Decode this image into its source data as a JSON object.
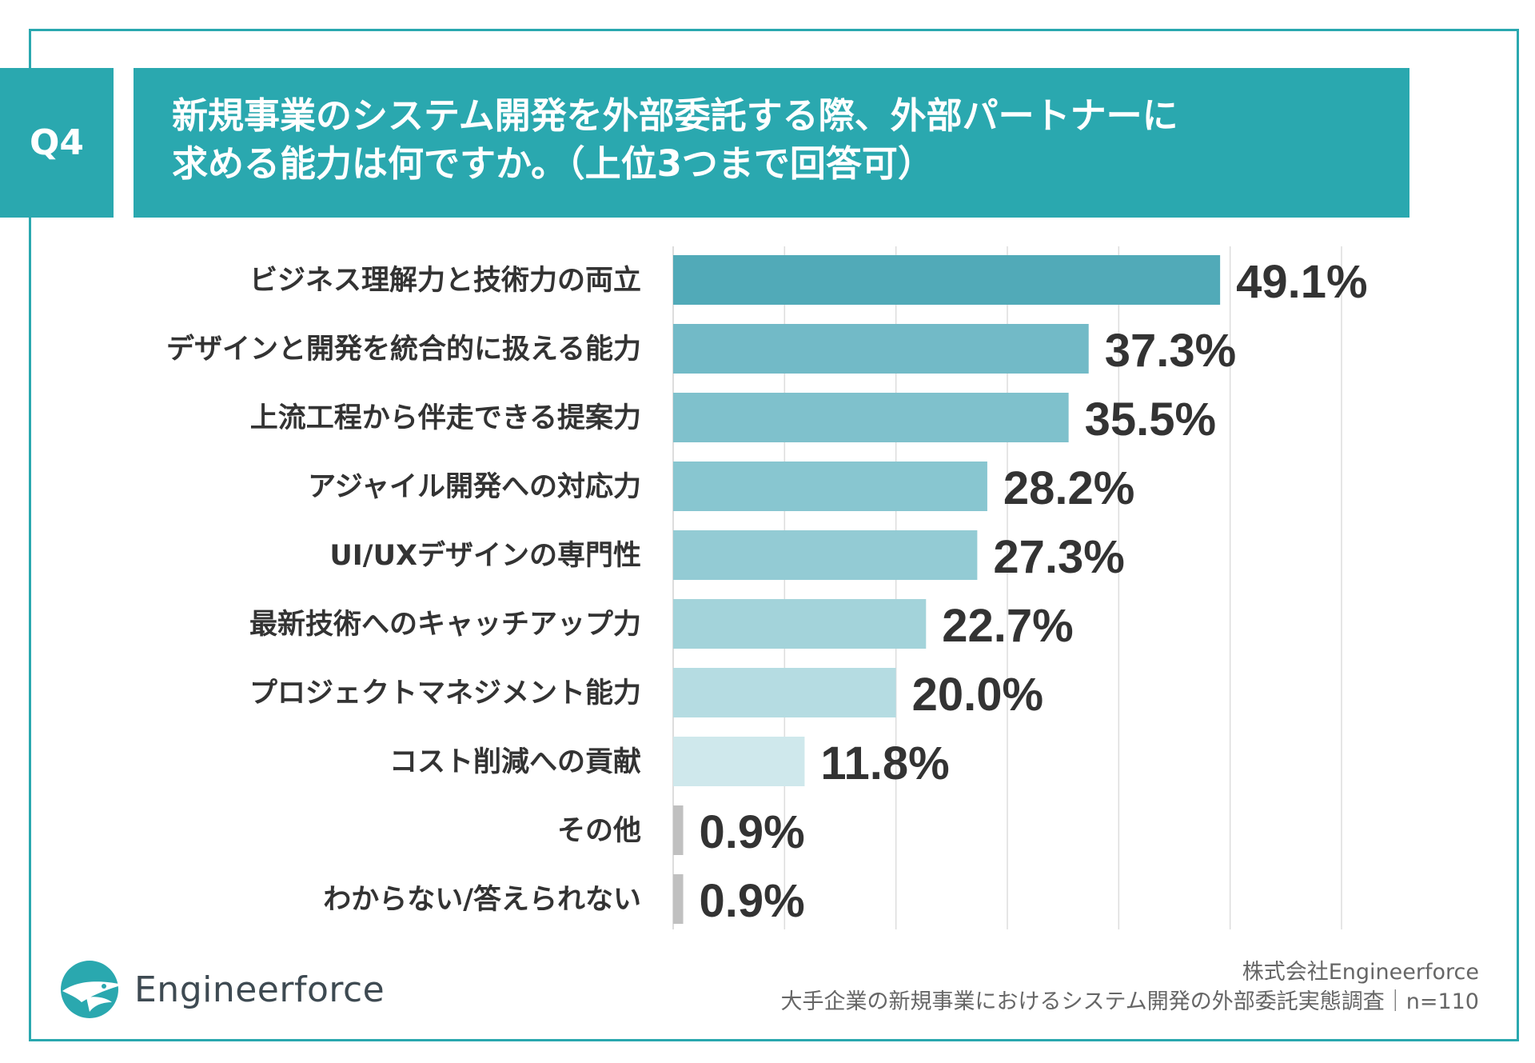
{
  "question": {
    "badge": "Q4",
    "title_line1": "新規事業のシステム開発を外部委託する際、外部パートナーに",
    "title_line2": "求める能力は何ですか。（上位3つまで回答可）"
  },
  "chart_data": {
    "type": "bar",
    "orientation": "horizontal",
    "categories": [
      "ビジネス理解力と技術力の両立",
      "デザインと開発を統合的に扱える能力",
      "上流工程から伴走できる提案力",
      "アジャイル開発への対応力",
      "UI/UXデザインの専門性",
      "最新技術へのキャッチアップ力",
      "プロジェクトマネジメント能力",
      "コスト削減への貢献",
      "その他",
      "わからない/答えられない"
    ],
    "values": [
      49.1,
      37.3,
      35.5,
      28.2,
      27.3,
      22.7,
      20.0,
      11.8,
      0.9,
      0.9
    ],
    "value_labels": [
      "49.1%",
      "37.3%",
      "35.5%",
      "28.2%",
      "27.3%",
      "22.7%",
      "20.0%",
      "11.8%",
      "0.9%",
      "0.9%"
    ],
    "colors": [
      "#51aab8",
      "#72bac7",
      "#7fc1cc",
      "#88c6d0",
      "#93cbd4",
      "#a3d3da",
      "#b5dce2",
      "#cfe8ec",
      "#c0c0c0",
      "#c0c0c0"
    ],
    "xlim": [
      0,
      60
    ],
    "grid": true,
    "unit": "%"
  },
  "footer": {
    "brand": "Engineerforce",
    "company": "株式会社Engineerforce",
    "survey": "大手企業の新規事業におけるシステム開発の外部委託実態調査｜n=110"
  },
  "colors": {
    "accent": "#2aa8af",
    "text": "#333333",
    "grid": "#dddddd"
  }
}
